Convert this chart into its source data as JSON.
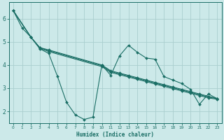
{
  "xlabel": "Humidex (Indice chaleur)",
  "bg_color": "#cce9e9",
  "grid_color": "#aacece",
  "line_color": "#1a6e65",
  "xlim": [
    -0.5,
    23.5
  ],
  "ylim": [
    1.5,
    6.7
  ],
  "xticks": [
    0,
    1,
    2,
    3,
    4,
    5,
    6,
    7,
    8,
    9,
    10,
    11,
    12,
    13,
    14,
    15,
    16,
    17,
    18,
    19,
    20,
    21,
    22,
    23
  ],
  "yticks": [
    2,
    3,
    4,
    5,
    6
  ],
  "series": [
    {
      "x": [
        0,
        1,
        2,
        3,
        4,
        5,
        6,
        7,
        8,
        9,
        10,
        11,
        12,
        13,
        14,
        15,
        16,
        17,
        18,
        19,
        20,
        21,
        22,
        23
      ],
      "y": [
        6.35,
        5.6,
        5.2,
        4.7,
        4.5,
        3.5,
        2.4,
        1.85,
        1.65,
        1.75,
        4.0,
        3.55,
        4.4,
        4.85,
        4.55,
        4.3,
        4.25,
        3.5,
        3.35,
        3.2,
        2.95,
        2.3,
        2.75,
        2.55
      ]
    },
    {
      "x": [
        0,
        2,
        3,
        4,
        10,
        11,
        12,
        13,
        14,
        15,
        16,
        17,
        18,
        19,
        20,
        21,
        22,
        23
      ],
      "y": [
        6.35,
        5.2,
        4.75,
        4.65,
        4.0,
        3.75,
        3.65,
        3.55,
        3.45,
        3.35,
        3.25,
        3.15,
        3.05,
        2.95,
        2.85,
        2.75,
        2.65,
        2.55
      ]
    },
    {
      "x": [
        0,
        2,
        3,
        4,
        10,
        11,
        12,
        13,
        14,
        15,
        16,
        17,
        18,
        19,
        20,
        21,
        22,
        23
      ],
      "y": [
        6.35,
        5.2,
        4.75,
        4.62,
        3.97,
        3.72,
        3.62,
        3.52,
        3.42,
        3.32,
        3.22,
        3.12,
        3.02,
        2.92,
        2.82,
        2.72,
        2.62,
        2.55
      ]
    },
    {
      "x": [
        0,
        2,
        3,
        4,
        10,
        11,
        12,
        13,
        14,
        15,
        16,
        17,
        18,
        19,
        20,
        21,
        22,
        23
      ],
      "y": [
        6.35,
        5.2,
        4.72,
        4.58,
        3.93,
        3.68,
        3.58,
        3.48,
        3.38,
        3.28,
        3.18,
        3.08,
        2.98,
        2.88,
        2.78,
        2.68,
        2.58,
        2.52
      ]
    }
  ]
}
